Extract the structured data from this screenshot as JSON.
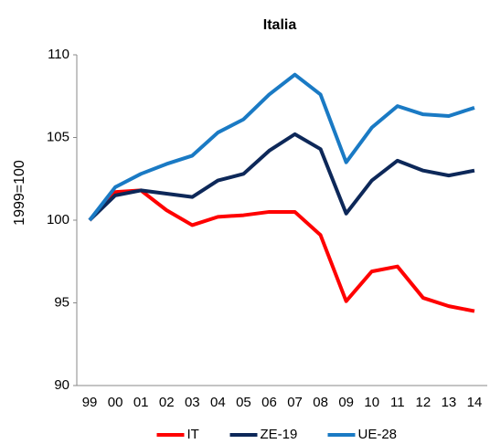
{
  "chart_data": {
    "type": "line",
    "title": "Italia",
    "y_label": "1999=100",
    "categories": [
      "99",
      "00",
      "01",
      "02",
      "03",
      "04",
      "05",
      "06",
      "07",
      "08",
      "09",
      "10",
      "11",
      "12",
      "13",
      "14"
    ],
    "series": [
      {
        "name": "IT",
        "color": "#ff0000",
        "values": [
          100,
          101.7,
          101.8,
          100.6,
          99.7,
          100.2,
          100.3,
          100.5,
          100.5,
          99.1,
          95.1,
          96.9,
          97.2,
          95.3,
          94.8,
          94.5
        ]
      },
      {
        "name": "ZE-19",
        "color": "#0d2859",
        "values": [
          100,
          101.5,
          101.8,
          101.6,
          101.4,
          102.4,
          102.8,
          104.2,
          105.2,
          104.3,
          100.4,
          102.4,
          103.6,
          103.0,
          102.7,
          103.0
        ]
      },
      {
        "name": "UE-28",
        "color": "#1a7ac4",
        "values": [
          100,
          102.0,
          102.8,
          103.4,
          103.9,
          105.3,
          106.1,
          107.6,
          108.8,
          107.6,
          103.5,
          105.6,
          106.9,
          106.4,
          106.3,
          106.8
        ]
      }
    ],
    "ylim": [
      90,
      110
    ],
    "yticks": [
      90,
      95,
      100,
      105,
      110
    ],
    "grid": false,
    "legend": "bottom"
  }
}
